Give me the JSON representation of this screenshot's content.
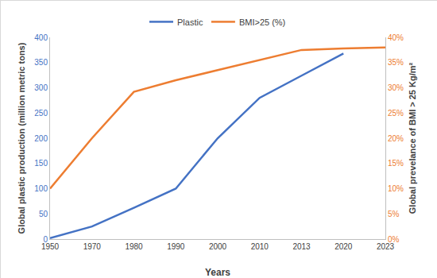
{
  "chart_data": {
    "type": "line",
    "x_label": "Years",
    "y_label": "Global plastic production (million metric tons)",
    "y2_label": "Global prevelance of BMI > 25 Kg/m²",
    "categories": [
      "1950",
      "1970",
      "1980",
      "1990",
      "2000",
      "2010",
      "2013",
      "2020",
      "2023"
    ],
    "series": [
      {
        "name": "Plastic",
        "color": "#4472c4",
        "axis": "y",
        "values": [
          2,
          25,
          62,
          100,
          200,
          280,
          324,
          368,
          null
        ]
      },
      {
        "name": "BMI>25 (%)",
        "color": "#ed7d31",
        "axis": "y2",
        "values": [
          10,
          20,
          29.2,
          31.5,
          33.5,
          35.5,
          37.5,
          37.8,
          38
        ]
      }
    ],
    "ylim": [
      0,
      400
    ],
    "yticks": [
      0,
      50,
      100,
      150,
      200,
      250,
      300,
      350,
      400
    ],
    "y2lim": [
      0,
      40
    ],
    "y2ticks": [
      {
        "value": 0,
        "label": "0%"
      },
      {
        "value": 5,
        "label": "5%"
      },
      {
        "value": 10,
        "label": "10%"
      },
      {
        "value": 15,
        "label": "15%"
      },
      {
        "value": 20,
        "label": "20%"
      },
      {
        "value": 25,
        "label": "25%"
      },
      {
        "value": 30,
        "label": "30%"
      },
      {
        "value": 35,
        "label": "35%"
      },
      {
        "value": 40,
        "label": "40%"
      }
    ],
    "grid": false,
    "legend": "top"
  }
}
